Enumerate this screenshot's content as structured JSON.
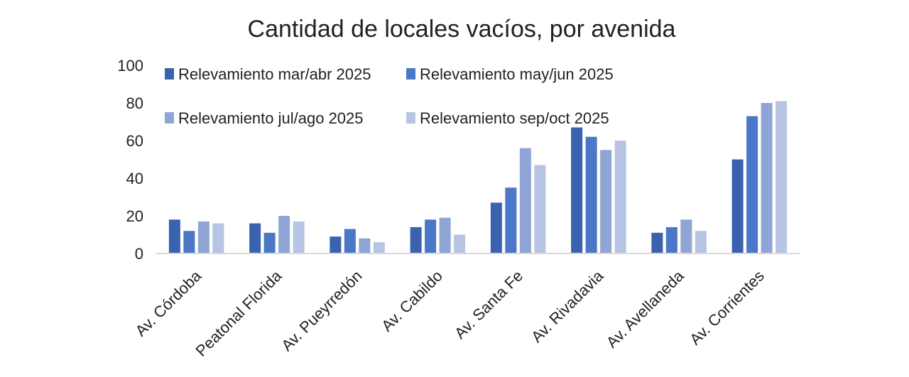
{
  "chart_data": {
    "type": "bar",
    "title": "Cantidad de locales vacíos, por avenida",
    "xlabel": "",
    "ylabel": "",
    "ylim": [
      0,
      100
    ],
    "yticks": [
      0,
      20,
      40,
      60,
      80,
      100
    ],
    "grid": false,
    "legend_position": "top",
    "categories": [
      "Av. Córdoba",
      "Peatonal Florida",
      "Av. Pueyrredón",
      "Av. Cabildo",
      "Av. Santa Fe",
      "Av. Rivadavia",
      "Av. Avellaneda",
      "Av. Corrientes"
    ],
    "series": [
      {
        "name": "Relevamiento mar/abr 2025",
        "color": "#3a62ae",
        "values": [
          18,
          16,
          9,
          14,
          27,
          67,
          11,
          50
        ]
      },
      {
        "name": "Relevamiento may/jun 2025",
        "color": "#4a77c8",
        "values": [
          12,
          11,
          13,
          18,
          35,
          62,
          14,
          73
        ]
      },
      {
        "name": "Relevamiento jul/ago 2025",
        "color": "#8fa5d6",
        "values": [
          17,
          20,
          8,
          19,
          56,
          55,
          18,
          80
        ]
      },
      {
        "name": "Relevamiento sep/oct 2025",
        "color": "#b8c4e3",
        "values": [
          16,
          17,
          6,
          10,
          47,
          60,
          12,
          81
        ]
      }
    ]
  }
}
